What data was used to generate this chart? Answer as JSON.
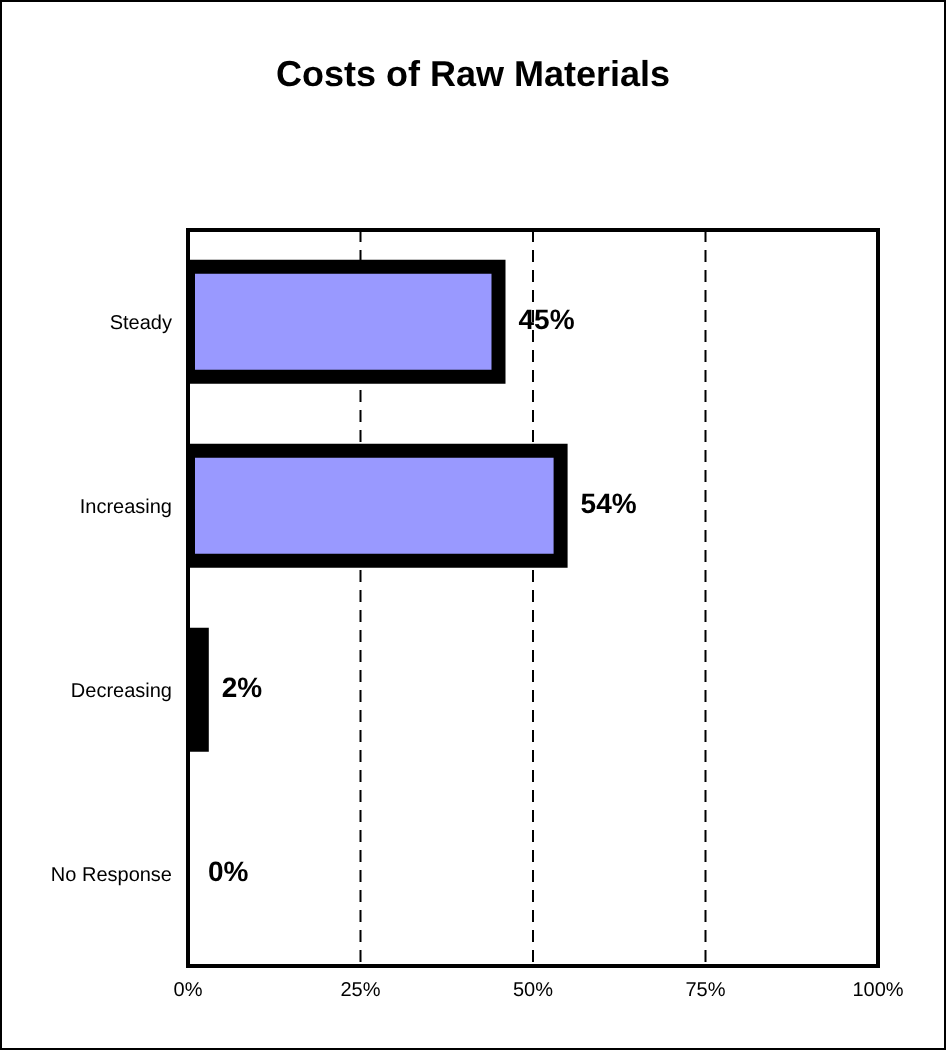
{
  "chart_data": {
    "type": "bar",
    "orientation": "horizontal",
    "title": "Costs of Raw Materials",
    "categories": [
      "Steady",
      "Increasing",
      "Decreasing",
      "No Response"
    ],
    "values": [
      45,
      54,
      2,
      0
    ],
    "value_labels": [
      "45%",
      "54%",
      "2%",
      "0%"
    ],
    "color": "#9999ff",
    "xlim": [
      0,
      100
    ],
    "xticks": [
      {
        "value": 0,
        "label": "0%"
      },
      {
        "value": 25,
        "label": "25%"
      },
      {
        "value": 50,
        "label": "50%"
      },
      {
        "value": 75,
        "label": "75%"
      },
      {
        "value": 100,
        "label": "100%"
      }
    ],
    "grid": "x",
    "line_style": "dashed",
    "legend": false
  }
}
